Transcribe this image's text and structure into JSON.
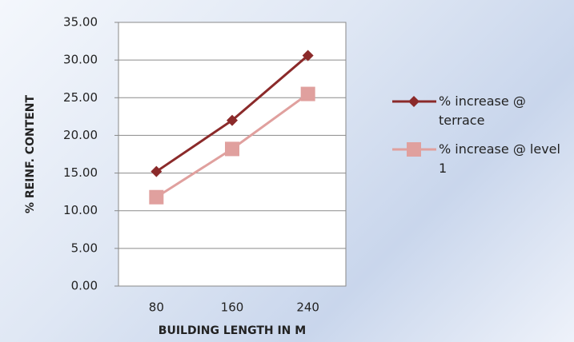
{
  "chart_data": {
    "type": "line",
    "categories": [
      "80",
      "160",
      "240"
    ],
    "series": [
      {
        "name": "% increase @ terrace",
        "color": "#8b2a2a",
        "marker": "diamond",
        "values": [
          15.2,
          22.0,
          30.6
        ]
      },
      {
        "name": "% increase @ level 1",
        "color": "#e0a09e",
        "marker": "square",
        "values": [
          11.8,
          18.2,
          25.5
        ]
      }
    ],
    "ylim": [
      0,
      35
    ],
    "yticks": [
      {
        "value": 0,
        "label": "0.00"
      },
      {
        "value": 5,
        "label": "5.00"
      },
      {
        "value": 10,
        "label": "10.00"
      },
      {
        "value": 15,
        "label": "15.00"
      },
      {
        "value": 20,
        "label": "20.00"
      },
      {
        "value": 25,
        "label": "25.00"
      },
      {
        "value": 30,
        "label": "30.00"
      },
      {
        "value": 35,
        "label": "35.00"
      }
    ],
    "xlabel": "BUILDING LENGTH IN M",
    "ylabel": "% REINF. CONTENT",
    "grid": true,
    "legend": "right"
  }
}
